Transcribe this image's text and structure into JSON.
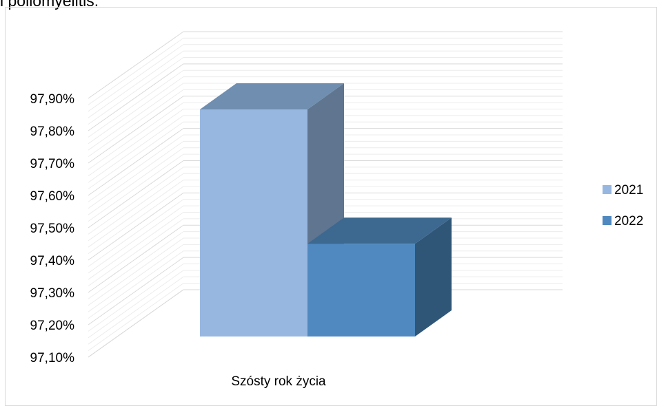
{
  "page": {
    "top_text": "i poliomyelitis."
  },
  "colors": {
    "s2021_front": "#97b7e0",
    "s2021_top": "#6f8eb0",
    "s2021_side": "#5f7590",
    "s2022_front": "#4f89c0",
    "s2022_top": "#3d6890",
    "s2022_side": "#2f5677",
    "grid": "#d9d9d9"
  },
  "chart_data": {
    "type": "bar",
    "categories": [
      "Szósty rok życia"
    ],
    "series": [
      {
        "name": "2021",
        "values": [
          97.855
        ]
      },
      {
        "name": "2022",
        "values": [
          97.42
        ]
      }
    ],
    "ylim": [
      97.1,
      97.9
    ],
    "yticks": [
      "97,10%",
      "97,20%",
      "97,30%",
      "97,40%",
      "97,50%",
      "97,60%",
      "97,70%",
      "97,80%",
      "97,90%"
    ],
    "legend": "right",
    "grid": true
  }
}
